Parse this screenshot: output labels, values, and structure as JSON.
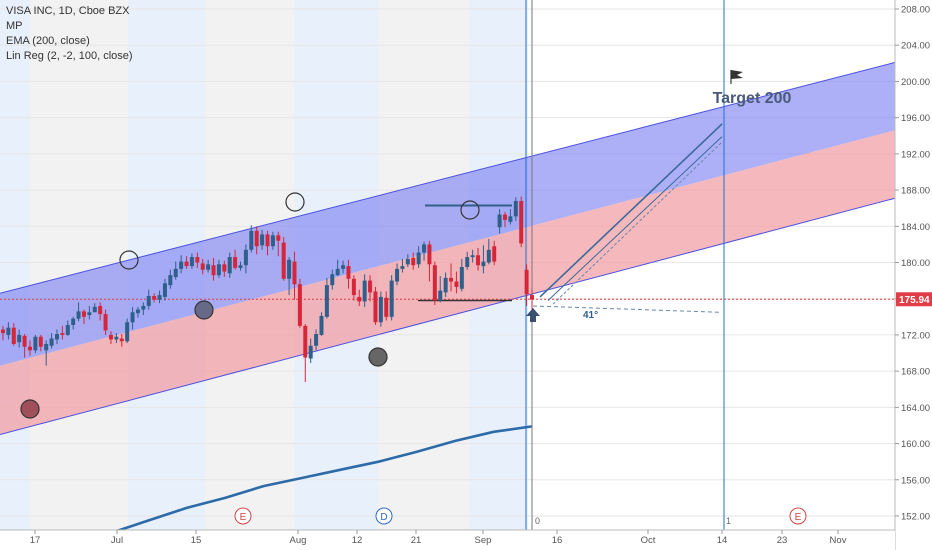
{
  "legend": {
    "symbol": "VISA INC, 1D, Cboe BZX",
    "indicator1": "MP",
    "indicator2": "EMA (200, close)",
    "indicator3": "Lin Reg (2, -2, 100, close)"
  },
  "colors": {
    "up": "#2f5f8a",
    "down": "#d6273a",
    "upper_band": "#7b7ff2",
    "lower_band": "#f19ca2",
    "ema": "#2d6aa9",
    "price_line": "#e23d47",
    "vline": "#1e6fd6"
  },
  "chart_data": {
    "type": "candlestick",
    "y_axis": {
      "ticks": [
        152,
        156,
        160,
        164,
        168,
        172,
        176,
        180,
        184,
        188,
        192,
        196,
        200,
        204,
        208
      ],
      "range": [
        150.6,
        209.3
      ]
    },
    "x_labels": [
      "17",
      "Jul",
      "15",
      "Aug",
      "12",
      "21",
      "Sep",
      "16",
      "Oct",
      "14",
      "23",
      "Nov"
    ],
    "last_price": "175.94",
    "candles": [
      [
        172.6,
        172.2,
        173.0,
        171.4
      ],
      [
        172.0,
        172.8,
        173.4,
        171.5
      ],
      [
        172.8,
        171.0,
        173.3,
        170.8
      ],
      [
        171.2,
        172.0,
        172.6,
        170.6
      ],
      [
        171.9,
        170.7,
        172.1,
        169.5
      ],
      [
        170.7,
        170.3,
        171.4,
        169.7
      ],
      [
        170.3,
        171.8,
        172.0,
        170.0
      ],
      [
        171.8,
        170.7,
        172.0,
        170.2
      ],
      [
        170.3,
        171.0,
        171.4,
        168.6
      ],
      [
        170.8,
        171.6,
        172.2,
        170.5
      ],
      [
        171.5,
        172.1,
        172.6,
        171.0
      ],
      [
        172.2,
        172.0,
        173.0,
        171.5
      ],
      [
        172.0,
        173.1,
        173.6,
        171.9
      ],
      [
        173.1,
        173.8,
        174.0,
        172.6
      ],
      [
        173.8,
        174.6,
        175.6,
        173.5
      ],
      [
        174.6,
        174.0,
        174.8,
        173.2
      ],
      [
        174.2,
        174.5,
        175.2,
        173.7
      ],
      [
        174.5,
        175.1,
        175.5,
        174.6
      ],
      [
        175.2,
        174.3,
        175.6,
        173.6
      ],
      [
        174.3,
        172.5,
        174.8,
        172.0
      ],
      [
        172.0,
        171.5,
        172.4,
        171.0
      ],
      [
        171.5,
        171.8,
        172.2,
        171.1
      ],
      [
        171.6,
        171.3,
        172.1,
        170.7
      ],
      [
        171.3,
        173.4,
        173.8,
        171.1
      ],
      [
        173.4,
        174.5,
        175.1,
        172.6
      ],
      [
        174.4,
        174.8,
        175.1,
        173.9
      ],
      [
        174.8,
        175.2,
        175.6,
        174.2
      ],
      [
        175.2,
        176.3,
        177.0,
        174.8
      ],
      [
        176.3,
        175.9,
        176.6,
        175.6
      ],
      [
        175.9,
        176.4,
        176.9,
        175.5
      ],
      [
        176.2,
        177.7,
        178.2,
        175.8
      ],
      [
        177.5,
        178.6,
        179.2,
        177.1
      ],
      [
        178.4,
        179.3,
        180.1,
        178.1
      ],
      [
        179.3,
        180.1,
        180.8,
        178.8
      ],
      [
        180.1,
        179.6,
        180.7,
        179.3
      ],
      [
        179.6,
        180.6,
        181.0,
        179.3
      ],
      [
        180.6,
        180.0,
        181.1,
        179.4
      ],
      [
        179.9,
        179.2,
        180.4,
        178.7
      ],
      [
        179.2,
        179.8,
        180.3,
        178.9
      ],
      [
        179.7,
        178.6,
        180.5,
        178.0
      ],
      [
        178.6,
        179.8,
        180.3,
        178.3
      ],
      [
        179.8,
        179.0,
        180.2,
        178.4
      ],
      [
        178.8,
        180.6,
        181.1,
        178.3
      ],
      [
        180.6,
        179.4,
        181.4,
        179.2
      ],
      [
        179.4,
        179.7,
        180.1,
        179.1
      ],
      [
        179.7,
        181.4,
        182.0,
        178.8
      ],
      [
        181.4,
        183.5,
        184.1,
        181.1
      ],
      [
        183.5,
        181.8,
        184.0,
        180.9
      ],
      [
        181.9,
        183.1,
        183.6,
        181.4
      ],
      [
        183.1,
        181.8,
        183.5,
        180.8
      ],
      [
        181.8,
        183.0,
        183.4,
        181.4
      ],
      [
        183.0,
        182.4,
        183.4,
        180.7
      ],
      [
        182.2,
        178.2,
        182.8,
        178.0
      ],
      [
        178.2,
        180.3,
        180.6,
        176.4
      ],
      [
        180.1,
        177.6,
        181.2,
        175.9
      ],
      [
        177.6,
        173.0,
        178.2,
        172.8
      ],
      [
        173.0,
        169.5,
        173.2,
        166.8
      ],
      [
        169.4,
        170.8,
        171.6,
        168.9
      ],
      [
        170.8,
        172.1,
        172.6,
        170.3
      ],
      [
        172.0,
        174.1,
        174.5,
        171.9
      ],
      [
        174.0,
        177.5,
        178.3,
        173.8
      ],
      [
        177.5,
        178.7,
        179.2,
        177.0
      ],
      [
        178.6,
        179.3,
        180.3,
        178.5
      ],
      [
        179.3,
        179.7,
        180.2,
        178.8
      ],
      [
        179.6,
        178.2,
        180.3,
        177.1
      ],
      [
        178.2,
        176.4,
        178.6,
        175.8
      ],
      [
        176.2,
        175.7,
        177.0,
        175.2
      ],
      [
        175.7,
        178.0,
        178.7,
        175.1
      ],
      [
        178.0,
        176.7,
        178.6,
        175.7
      ],
      [
        176.8,
        173.4,
        177.3,
        173.1
      ],
      [
        173.4,
        176.2,
        176.8,
        172.9
      ],
      [
        176.1,
        174.0,
        176.8,
        173.6
      ],
      [
        174.0,
        178.0,
        178.6,
        173.6
      ],
      [
        177.9,
        179.3,
        179.9,
        177.5
      ],
      [
        179.3,
        179.6,
        180.4,
        178.9
      ],
      [
        179.8,
        180.4,
        180.9,
        179.5
      ],
      [
        180.5,
        179.7,
        181.1,
        179.2
      ],
      [
        179.8,
        181.1,
        181.8,
        179.4
      ],
      [
        181.1,
        182.0,
        182.3,
        180.2
      ],
      [
        182.0,
        179.8,
        182.4,
        177.9
      ],
      [
        179.7,
        175.8,
        180.1,
        175.3
      ],
      [
        175.8,
        176.9,
        178.5,
        175.6
      ],
      [
        176.7,
        178.3,
        178.9,
        176.2
      ],
      [
        178.3,
        177.9,
        179.9,
        176.8
      ],
      [
        177.9,
        177.3,
        179.0,
        176.6
      ],
      [
        177.1,
        179.5,
        180.4,
        176.8
      ],
      [
        179.5,
        180.6,
        181.2,
        179.2
      ],
      [
        180.6,
        180.8,
        181.4,
        180.0
      ],
      [
        180.8,
        179.7,
        181.6,
        179.1
      ],
      [
        179.6,
        180.1,
        181.9,
        178.8
      ],
      [
        180.0,
        181.4,
        182.6,
        179.8
      ],
      [
        181.8,
        180.1,
        182.4,
        179.7
      ],
      [
        183.9,
        185.3,
        185.9,
        183.2
      ],
      [
        185.3,
        184.7,
        185.6,
        183.9
      ],
      [
        184.5,
        185.1,
        185.9,
        184.2
      ],
      [
        185.1,
        186.8,
        187.2,
        184.6
      ],
      [
        186.8,
        182.1,
        187.3,
        181.7
      ],
      [
        179.2,
        176.5,
        179.8,
        175.2
      ],
      [
        176.4,
        175.9,
        177.0,
        174.8
      ]
    ],
    "lin_reg": {
      "upper_start": 176.6,
      "upper_end": 202.1,
      "mid_start": 168.6,
      "mid_end": 194.6,
      "lower_start": 161.0,
      "lower_end": 187.1
    },
    "ema_200": [
      150.1,
      151.5,
      152.9,
      154.0,
      155.3,
      156.2,
      157.1,
      158.0,
      159.1,
      160.3,
      161.3,
      161.9
    ],
    "annotations": {
      "target_label": "Target 200",
      "angle_label": "41°",
      "earnings_marker": "E",
      "dividend_marker": "D",
      "bar_counter_0": "0",
      "bar_counter_1": "1"
    }
  }
}
